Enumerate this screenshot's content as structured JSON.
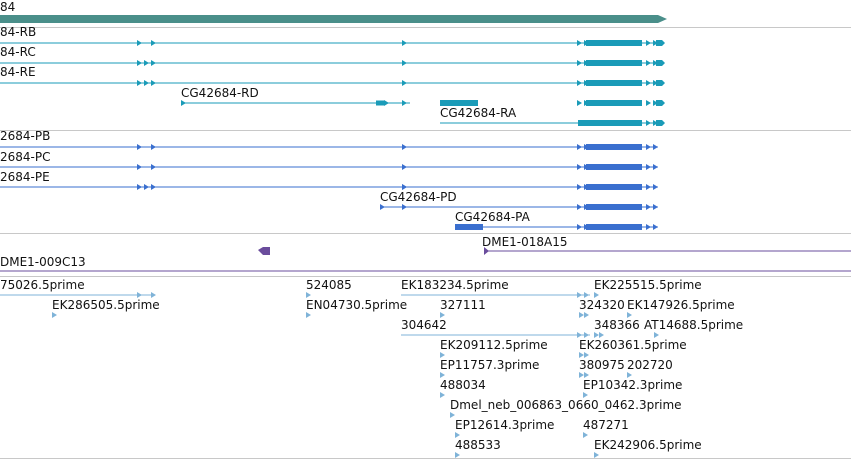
{
  "tracks": {
    "gene": {
      "name_fragment": "84",
      "color": "#4a8f8a"
    },
    "transcripts_rna": {
      "color": "#1a9bb8",
      "items": [
        {
          "label": "84-RB"
        },
        {
          "label": "84-RC"
        },
        {
          "label": "84-RE"
        },
        {
          "label": "CG42684-RD"
        },
        {
          "label": "CG42684-RA"
        }
      ]
    },
    "transcripts_protein": {
      "color": "#3a6fcf",
      "items": [
        {
          "label": "2684-PB"
        },
        {
          "label": "2684-PC"
        },
        {
          "label": "2684-PE"
        },
        {
          "label": "CG42684-PD"
        },
        {
          "label": "CG42684-PA"
        }
      ]
    },
    "clones": {
      "color": "#6a4c9c",
      "items": [
        {
          "label": "DME1-018A15"
        },
        {
          "label": "DME1-009C13"
        }
      ]
    },
    "ests": {
      "color": "#7fb3d8",
      "labels": [
        "75026.5prime",
        "EK286505.5prime",
        "524085",
        "EN04730.5prime",
        "EK183234.5prime",
        "327111",
        "304642",
        "EK209112.5prime",
        "EP11757.3prime",
        "488034",
        "Dmel_neb_006863_0660_0462.3prime",
        "EP12614.3prime",
        "488533",
        "EK225515.5prime",
        "324320",
        "EK147926.5prime",
        "348366",
        "AT14688.5prime",
        "EK260361.5prime",
        "380975",
        "202720",
        "EP10342.3prime",
        "487271",
        "EK242906.5prime"
      ]
    }
  },
  "colors": {
    "divider": "#c8c8c8",
    "text": "#111111"
  }
}
